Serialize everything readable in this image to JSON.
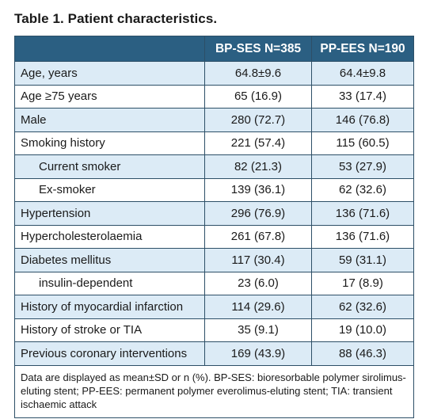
{
  "title": "Table 1. Patient characteristics.",
  "columns": [
    "",
    "BP-SES N=385",
    "PP-EES N=190"
  ],
  "rows": [
    {
      "label": "Age, years",
      "a": "64.8±9.6",
      "b": "64.4±9.8",
      "indent": false
    },
    {
      "label": "Age ≥75 years",
      "a": "65 (16.9)",
      "b": "33 (17.4)",
      "indent": false
    },
    {
      "label": "Male",
      "a": "280 (72.7)",
      "b": "146 (76.8)",
      "indent": false
    },
    {
      "label": "Smoking history",
      "a": "221 (57.4)",
      "b": "115 (60.5)",
      "indent": false
    },
    {
      "label": "Current smoker",
      "a": "82 (21.3)",
      "b": "53 (27.9)",
      "indent": true
    },
    {
      "label": "Ex-smoker",
      "a": "139 (36.1)",
      "b": "62 (32.6)",
      "indent": true
    },
    {
      "label": "Hypertension",
      "a": "296 (76.9)",
      "b": "136 (71.6)",
      "indent": false
    },
    {
      "label": "Hypercholesterolaemia",
      "a": "261 (67.8)",
      "b": "136 (71.6)",
      "indent": false
    },
    {
      "label": "Diabetes mellitus",
      "a": "117 (30.4)",
      "b": "59 (31.1)",
      "indent": false
    },
    {
      "label": "insulin-dependent",
      "a": "23 (6.0)",
      "b": "17 (8.9)",
      "indent": true
    },
    {
      "label": "History of myocardial infarction",
      "a": "114 (29.6)",
      "b": "62 (32.6)",
      "indent": false
    },
    {
      "label": "History of stroke or TIA",
      "a": "35 (9.1)",
      "b": "19 (10.0)",
      "indent": false
    },
    {
      "label": "Previous coronary interventions",
      "a": "169 (43.9)",
      "b": "88 (46.3)",
      "indent": false
    }
  ],
  "footnote": "Data are displayed as mean±SD or n (%). BP-SES: bioresorbable polymer sirolimus-eluting stent; PP-EES: permanent polymer everolimus-eluting stent; TIA: transient ischaemic attack",
  "colors": {
    "header": "#2b5f82",
    "alt_row": "#dcebf6",
    "border": "#2d4f67"
  }
}
